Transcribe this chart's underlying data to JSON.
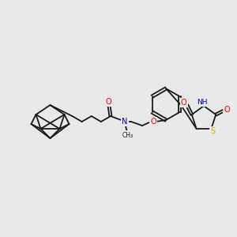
{
  "background_color": "#e8e8e8",
  "bond_color": "#1a1a1a",
  "atom_colors": {
    "O": "#ff0000",
    "N": "#0000cc",
    "S": "#bbbb00",
    "H": "#888888",
    "C": "#1a1a1a"
  },
  "figsize": [
    3.0,
    3.0
  ],
  "dpi": 100,
  "bond_lw": 1.3,
  "font_size": 7.0
}
